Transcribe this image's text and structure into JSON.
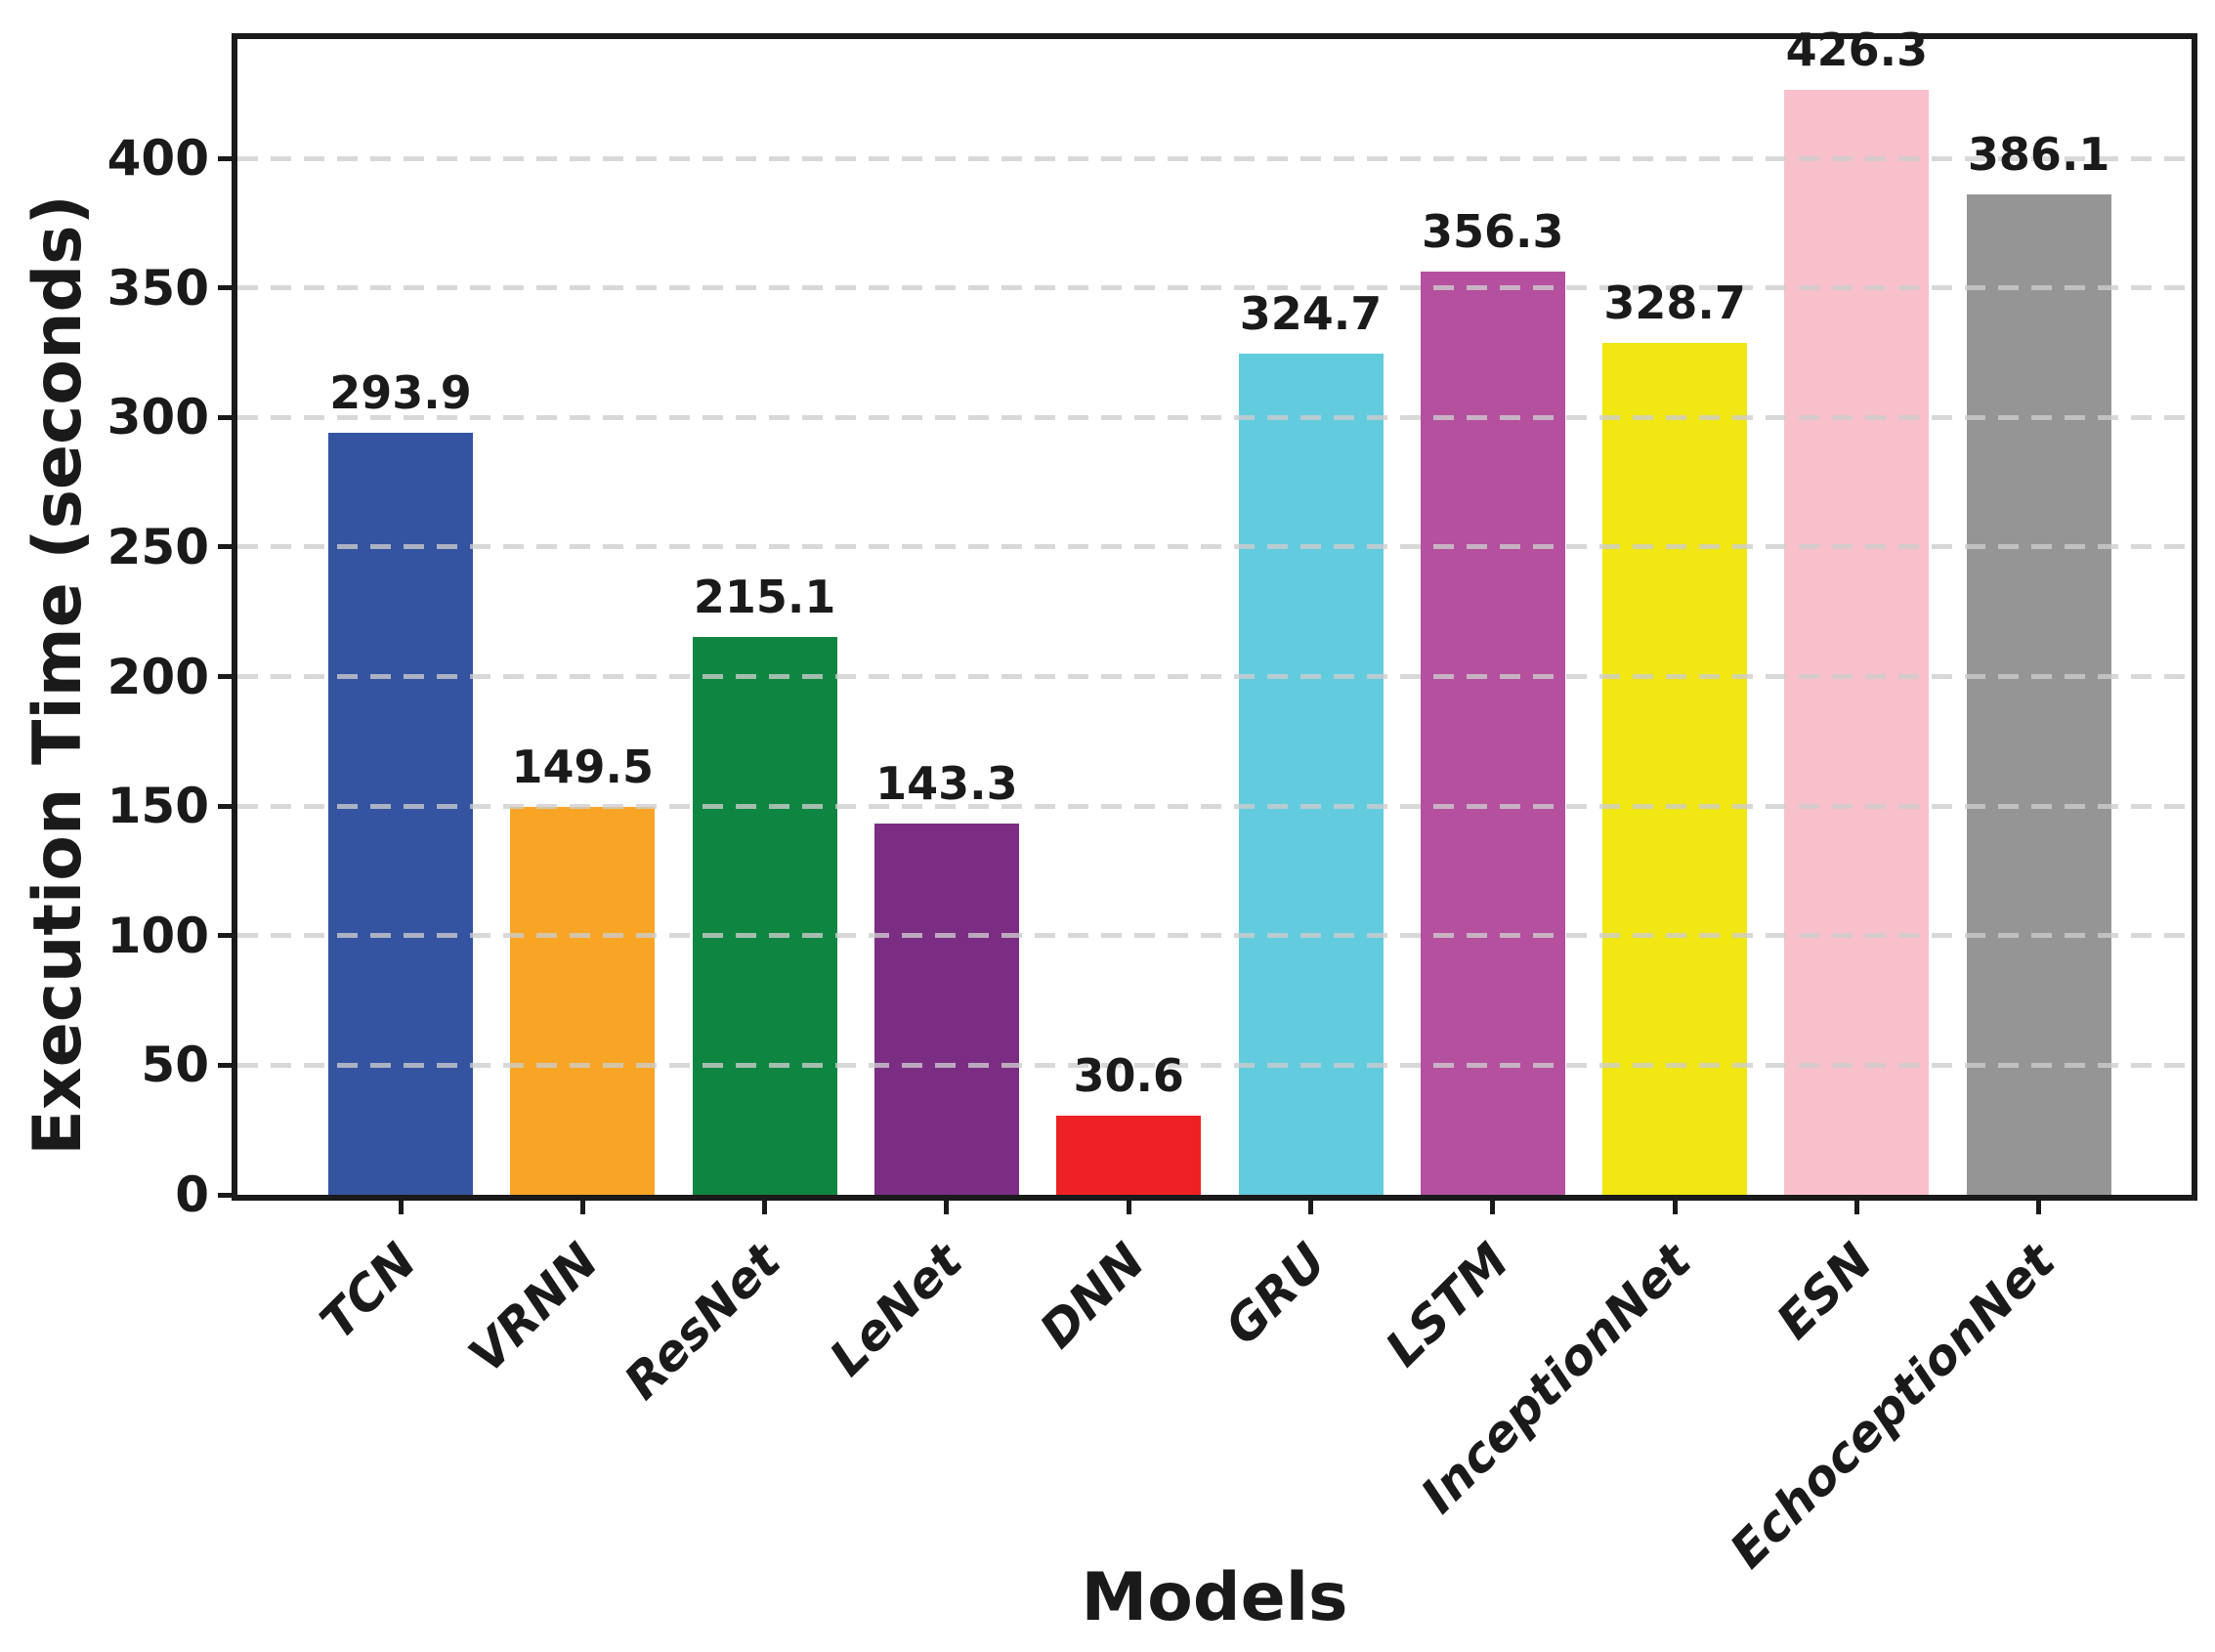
{
  "chart_data": {
    "type": "bar",
    "title": "",
    "xlabel": "Models",
    "ylabel": "Execution Time (seconds)",
    "categories": [
      "TCN",
      "VRNN",
      "ResNet",
      "LeNet",
      "DNN",
      "GRU",
      "LSTM",
      "InceptionNet",
      "ESN",
      "EchoceptionNet"
    ],
    "values": [
      293.9,
      149.5,
      215.1,
      143.3,
      30.6,
      324.7,
      356.3,
      328.7,
      426.3,
      386.1
    ],
    "value_labels": [
      "293.9",
      "149.5",
      "215.1",
      "143.3",
      "30.6",
      "324.7",
      "356.3",
      "328.7",
      "426.3",
      "386.1"
    ],
    "bar_colors": [
      "#3454A1",
      "#F8A525",
      "#0E8641",
      "#7B2D84",
      "#EE2224",
      "#62CBDE",
      "#B4509E",
      "#F1E712",
      "#F8C0CB",
      "#959595"
    ],
    "yticks": [
      "0",
      "50",
      "100",
      "150",
      "200",
      "250",
      "300",
      "350",
      "400"
    ],
    "ytick_values": [
      0,
      50,
      100,
      150,
      200,
      250,
      300,
      350,
      400
    ],
    "ylim": [
      0,
      446
    ],
    "grid": {
      "axis": "y",
      "style": "dashed",
      "color": "#cdcdcd",
      "drawn_above_bars": true
    },
    "legend": "none",
    "axis_color": "#1a1a1a"
  }
}
